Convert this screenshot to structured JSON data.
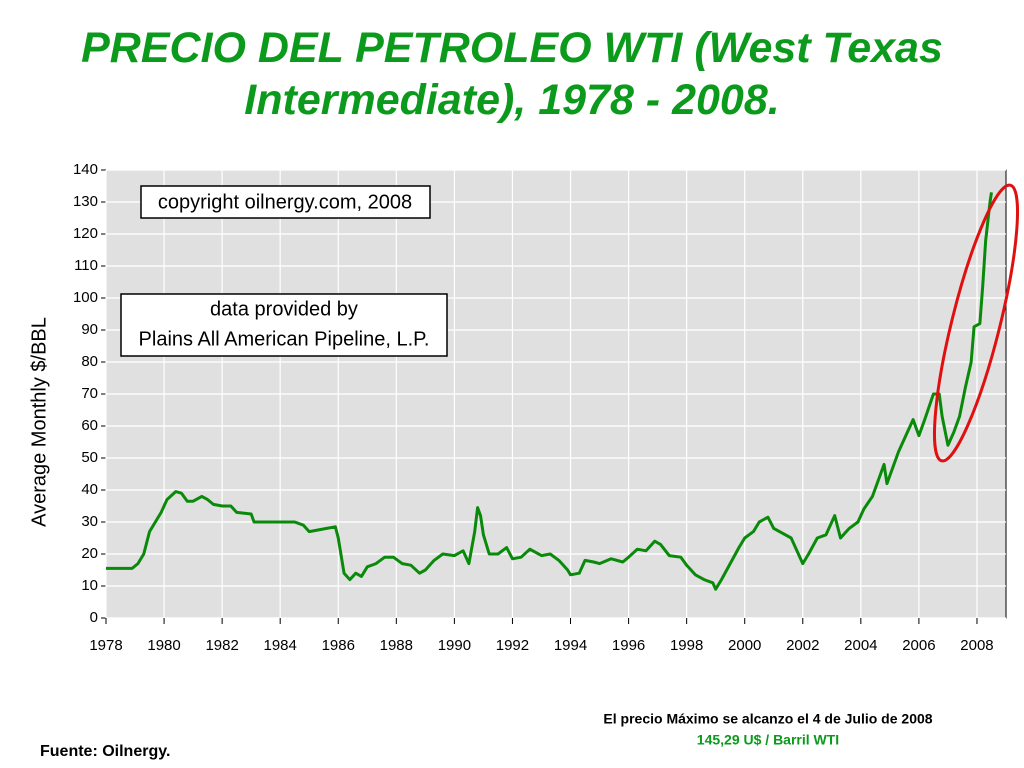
{
  "chart_data": {
    "type": "line",
    "title": "PRECIO DEL PETROLEO WTI (West Texas Intermediate), 1978 - 2008.",
    "y_label": "Average Monthly $/BBL",
    "annotations": [
      "copyright oilnergy.com, 2008",
      "data provided by",
      "Plains All American Pipeline, L.P."
    ],
    "footer_note": "El precio Máximo se alcanzo el 4 de Julio de 2008",
    "footer_price": "145,29 U$ / Barril WTI",
    "source": "Fuente: Oilnergy.",
    "xlim": [
      1978,
      2009
    ],
    "xticks": [
      1978,
      1980,
      1982,
      1984,
      1986,
      1988,
      1990,
      1992,
      1994,
      1996,
      1998,
      2000,
      2002,
      2004,
      2006,
      2008
    ],
    "ylim": [
      0,
      140
    ],
    "yticks": [
      0,
      10,
      20,
      30,
      40,
      50,
      60,
      70,
      80,
      90,
      100,
      110,
      120,
      130,
      140
    ],
    "grid": true,
    "series": [
      {
        "color": "#0a8a0a",
        "x": [
          1978.0,
          1978.9,
          1979.1,
          1979.3,
          1979.5,
          1979.7,
          1979.9,
          1980.1,
          1980.4,
          1980.6,
          1980.8,
          1981.0,
          1981.3,
          1981.5,
          1981.7,
          1982.0,
          1982.3,
          1982.5,
          1983.0,
          1983.1,
          1984.0,
          1984.5,
          1984.8,
          1985.0,
          1985.3,
          1985.6,
          1985.9,
          1986.0,
          1986.2,
          1986.4,
          1986.6,
          1986.8,
          1987.0,
          1987.3,
          1987.6,
          1987.9,
          1988.2,
          1988.5,
          1988.8,
          1989.0,
          1989.3,
          1989.6,
          1990.0,
          1990.3,
          1990.5,
          1990.7,
          1990.8,
          1990.9,
          1991.0,
          1991.2,
          1991.5,
          1991.8,
          1992.0,
          1992.3,
          1992.6,
          1993.0,
          1993.3,
          1993.6,
          1993.9,
          1994.0,
          1994.3,
          1994.5,
          1994.8,
          1995.0,
          1995.4,
          1995.8,
          1996.0,
          1996.3,
          1996.6,
          1996.9,
          1997.1,
          1997.4,
          1997.8,
          1998.0,
          1998.3,
          1998.6,
          1998.9,
          1999.0,
          1999.2,
          1999.5,
          1999.8,
          2000.0,
          2000.3,
          2000.5,
          2000.8,
          2001.0,
          2001.3,
          2001.6,
          2001.9,
          2002.0,
          2002.2,
          2002.5,
          2002.8,
          2003.0,
          2003.1,
          2003.3,
          2003.6,
          2003.9,
          2004.1,
          2004.4,
          2004.6,
          2004.8,
          2004.9,
          2005.1,
          2005.3,
          2005.6,
          2005.8,
          2006.0,
          2006.2,
          2006.5,
          2006.7,
          2006.8,
          2007.0,
          2007.2,
          2007.4,
          2007.6,
          2007.8,
          2007.9,
          2008.1,
          2008.2,
          2008.3,
          2008.45,
          2008.5
        ],
        "values": [
          15.5,
          15.5,
          17,
          20,
          27,
          30,
          33,
          37,
          39.5,
          39,
          36.5,
          36.5,
          38,
          37,
          35.5,
          35,
          35,
          33,
          32.5,
          30,
          30,
          30,
          29,
          27,
          27.5,
          28,
          28.5,
          25,
          14,
          12,
          14,
          13,
          16,
          17,
          19,
          19,
          17,
          16.5,
          14,
          15,
          18,
          20,
          19.5,
          21,
          17,
          27,
          34.5,
          32,
          26,
          20,
          20,
          22,
          18.5,
          19,
          21.5,
          19.5,
          20,
          18,
          15,
          13.5,
          14,
          18,
          17.5,
          17,
          18.5,
          17.5,
          19,
          21.5,
          21,
          24,
          23,
          19.5,
          19,
          16.5,
          13.5,
          12,
          11,
          9,
          12,
          17,
          22,
          25,
          27,
          30,
          31.5,
          28,
          26.5,
          25,
          19,
          17,
          20,
          25,
          26,
          30,
          32,
          25,
          28,
          30,
          34,
          38,
          43,
          48,
          42,
          47,
          52,
          58,
          62,
          57,
          62,
          70,
          70,
          63,
          54,
          58,
          63,
          72,
          80,
          91,
          92,
          104,
          118,
          130,
          133
        ]
      }
    ]
  }
}
